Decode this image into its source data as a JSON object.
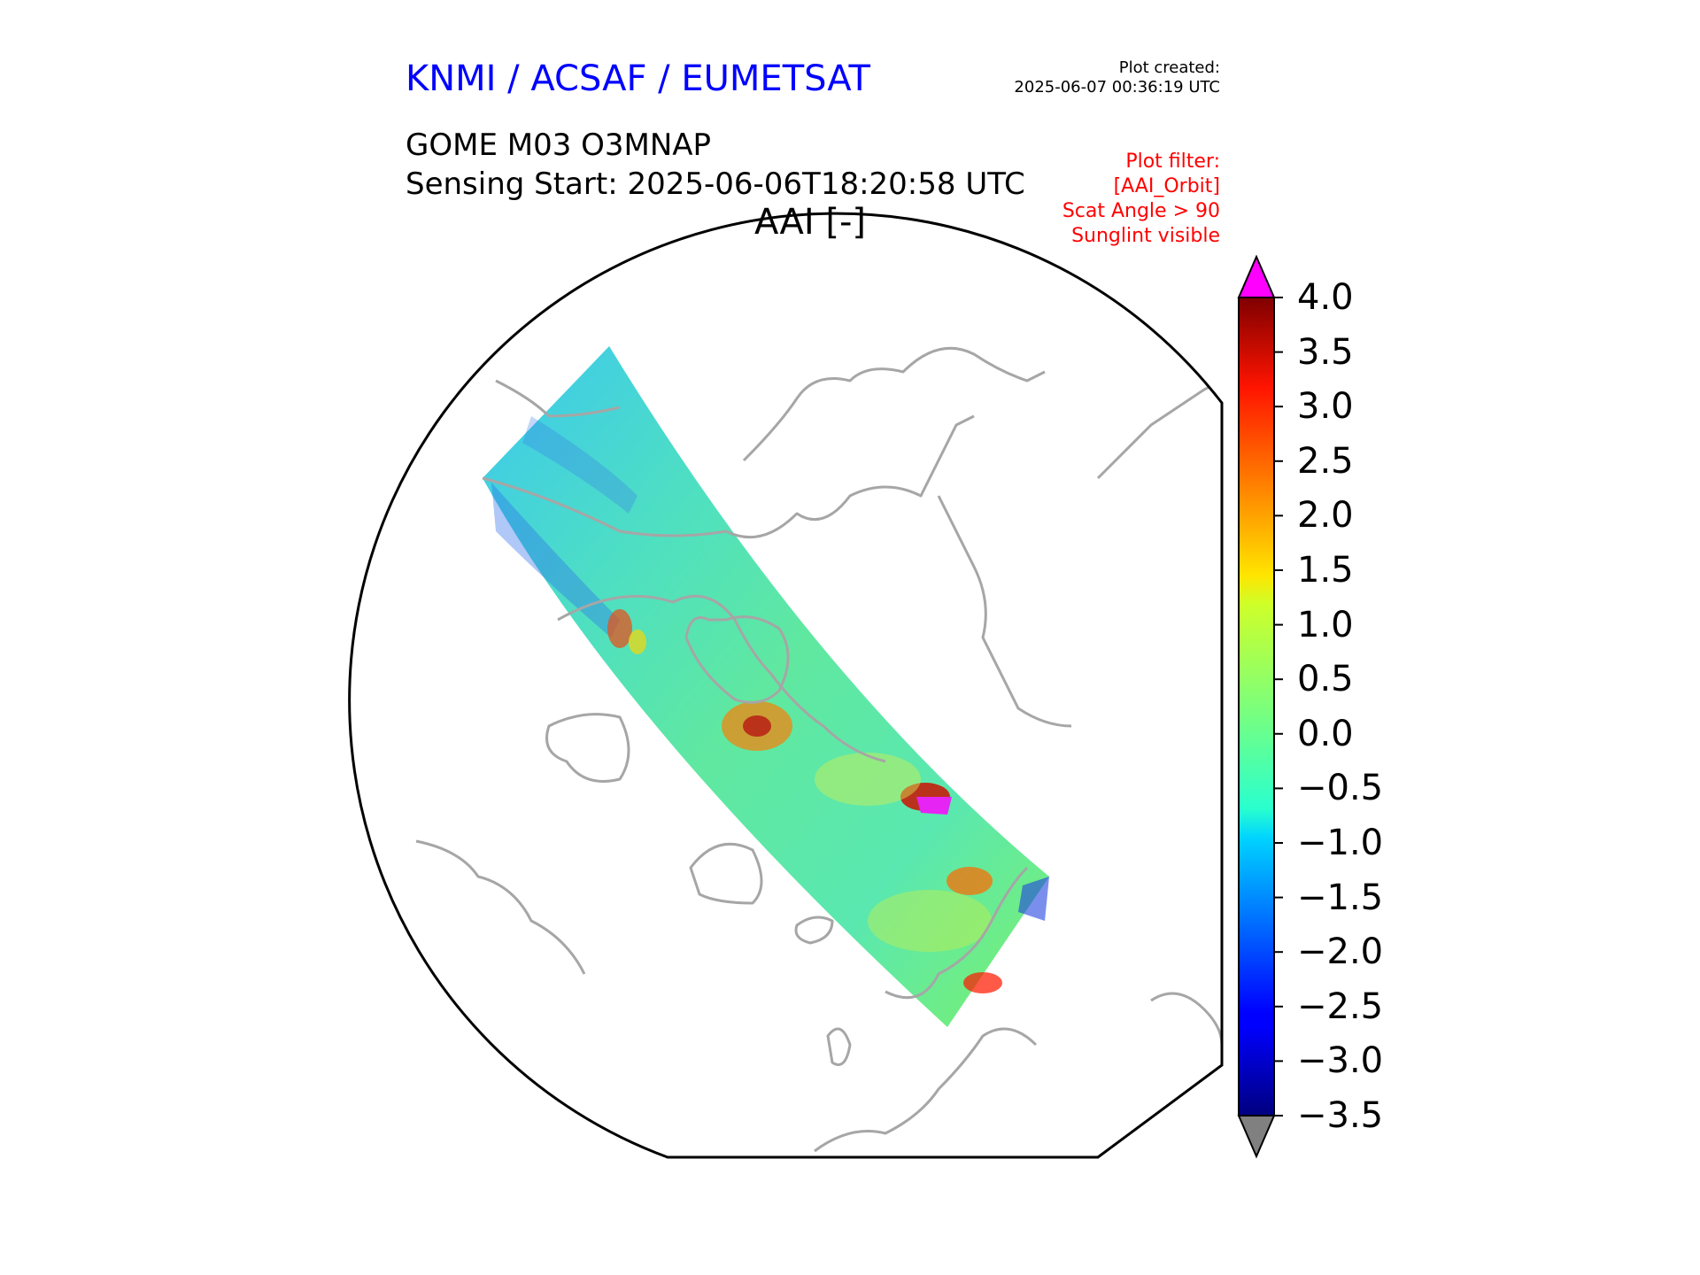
{
  "header": {
    "organization": "KNMI / ACSAF / EUMETSAT",
    "plot_created_label": "Plot created:",
    "plot_created_time": "2025-06-07 00:36:19 UTC"
  },
  "product": {
    "title": "GOME M03 O3MNAP",
    "sensing_start": "Sensing Start: 2025-06-06T18:20:58 UTC"
  },
  "map": {
    "title": "AAI [-]",
    "projection": "north-polar-orthographic",
    "filter_lines": [
      "Plot filter:",
      "[AAI_Orbit]",
      "Scat Angle > 90",
      "Sunglint visible"
    ]
  },
  "colorbar": {
    "min": -3.5,
    "max": 4.0,
    "tick_labels": [
      "4.0",
      "3.5",
      "3.0",
      "2.5",
      "2.0",
      "1.5",
      "1.0",
      "0.5",
      "0.0",
      "−0.5",
      "−1.0",
      "−1.5",
      "−2.0",
      "−2.5",
      "−3.0",
      "−3.5"
    ],
    "over_color": "#ff00ff",
    "under_color": "#808080",
    "colormap": "jet"
  },
  "colors": {
    "header": "#0000ff",
    "filter_text": "#ff0000",
    "coastline": "#a6a6a6",
    "frame": "#000000"
  }
}
